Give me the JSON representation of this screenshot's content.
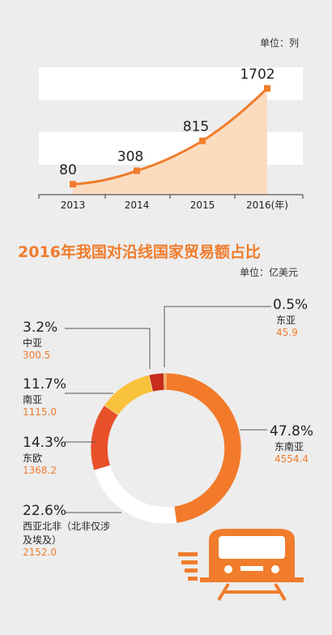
{
  "top_unit": "单位：列",
  "title": "2016年我国对沿线国家贸易额占比",
  "bottom_unit": "单位：亿美元",
  "colors": {
    "orange": "#f07c2c",
    "fill": "#fcdcbf",
    "stripe": "#ffffff",
    "bg": "#ededed"
  },
  "chart_data": [
    {
      "type": "area",
      "categories": [
        "2013",
        "2014",
        "2015",
        "2016(年)"
      ],
      "values": [
        80,
        308,
        815,
        1702
      ],
      "data_labels": [
        "80",
        "308",
        "815",
        "1702"
      ],
      "ylim": [
        0,
        1800
      ],
      "grid": false
    },
    {
      "type": "pie",
      "style": "donut",
      "slices": [
        {
          "name": "东南亚",
          "percent": "47.8%",
          "value": "4554.4",
          "color": "#f27a2a"
        },
        {
          "name": "西亚北非（北非仅涉及埃及）",
          "percent": "22.6%",
          "value": "2152.0",
          "color": "#ffffff"
        },
        {
          "name": "东欧",
          "percent": "14.3%",
          "value": "1368.2",
          "color": "#e8502a"
        },
        {
          "name": "南亚",
          "percent": "11.7%",
          "value": "1115.0",
          "color": "#f9c23c"
        },
        {
          "name": "中亚",
          "percent": "3.2%",
          "value": "300.5",
          "color": "#c72c1c"
        },
        {
          "name": "东亚",
          "percent": "0.5%",
          "value": "45.9",
          "color": "#f2a33a"
        }
      ]
    }
  ],
  "legend_labels": {
    "dna": {
      "pct": "47.8%",
      "name": "东南亚",
      "val": "4554.4"
    },
    "xy": {
      "pct": "22.6%",
      "name1": "西亚北非（北非仅涉",
      "name2": "及埃及）",
      "val": "2152.0"
    },
    "do": {
      "pct": "14.3%",
      "name": "东欧",
      "val": "1368.2"
    },
    "na": {
      "pct": "11.7%",
      "name": "南亚",
      "val": "1115.0"
    },
    "zy": {
      "pct": "3.2%",
      "name": "中亚",
      "val": "300.5"
    },
    "dy": {
      "pct": "0.5%",
      "name": "东亚",
      "val": "45.9"
    }
  }
}
